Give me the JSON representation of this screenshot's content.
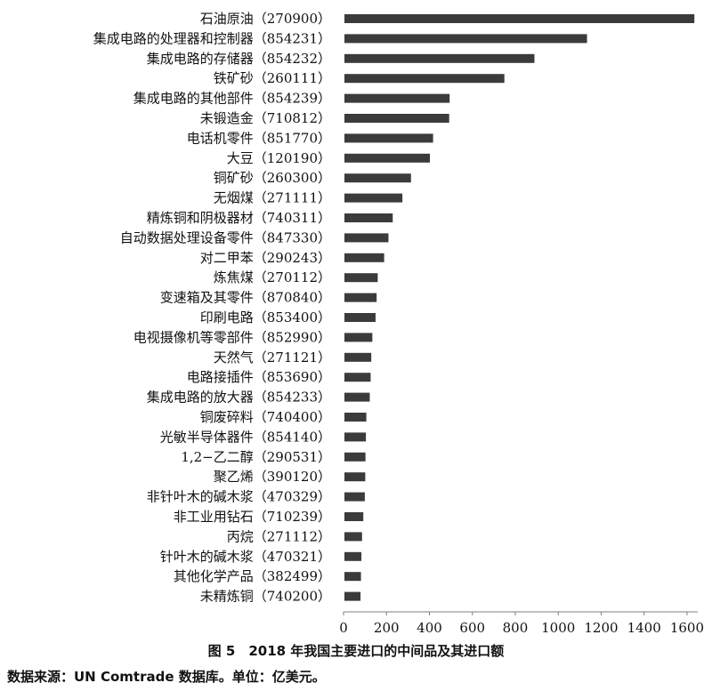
{
  "chart_data": {
    "type": "bar",
    "orientation": "horizontal",
    "categories": [
      "石油原油（270900）",
      "集成电路的处理器和控制器（854231）",
      "集成电路的存储器（854232）",
      "铁矿砂（260111）",
      "集成电路的其他部件（854239）",
      "未锻造金（710812）",
      "电话机零件（851770）",
      "大豆（120190）",
      "铜矿砂（260300）",
      "无烟煤（271111）",
      "精炼铜和阴极器材（740311）",
      "自动数据处理设备零件（847330）",
      "对二甲苯（290243）",
      "炼焦煤（270112）",
      "变速箱及其零件（870840）",
      "印刷电路（853400）",
      "电视摄像机等零部件（852990）",
      "天然气（271121）",
      "电路接插件（853690）",
      "集成电路的放大器（854233）",
      "铜废碎料（740400）",
      "光敏半导体器件（854140）",
      "1,2−乙二醇（290531）",
      "聚乙烯（390120）",
      "非针叶木的碱木浆（470329）",
      "非工业用钻石（710239）",
      "丙烷（271112）",
      "针叶木的碱木浆（470321）",
      "其他化学产品（382499）",
      "未精炼铜（740200）"
    ],
    "values": [
      1630,
      1130,
      885,
      745,
      490,
      488,
      413,
      398,
      310,
      270,
      225,
      205,
      185,
      155,
      150,
      145,
      130,
      125,
      122,
      118,
      102,
      100,
      98,
      97,
      95,
      88,
      82,
      79,
      77,
      75
    ],
    "xlim": [
      0,
      1650
    ],
    "xticks": [
      "0",
      "200",
      "400",
      "600",
      "800",
      "1000",
      "1200",
      "1400",
      "1600"
    ],
    "grid": false,
    "caption": "图 5　2018 年我国主要进口的中间品及其进口额",
    "source_note": "数据来源：UN Comtrade 数据库。单位：亿美元。"
  }
}
